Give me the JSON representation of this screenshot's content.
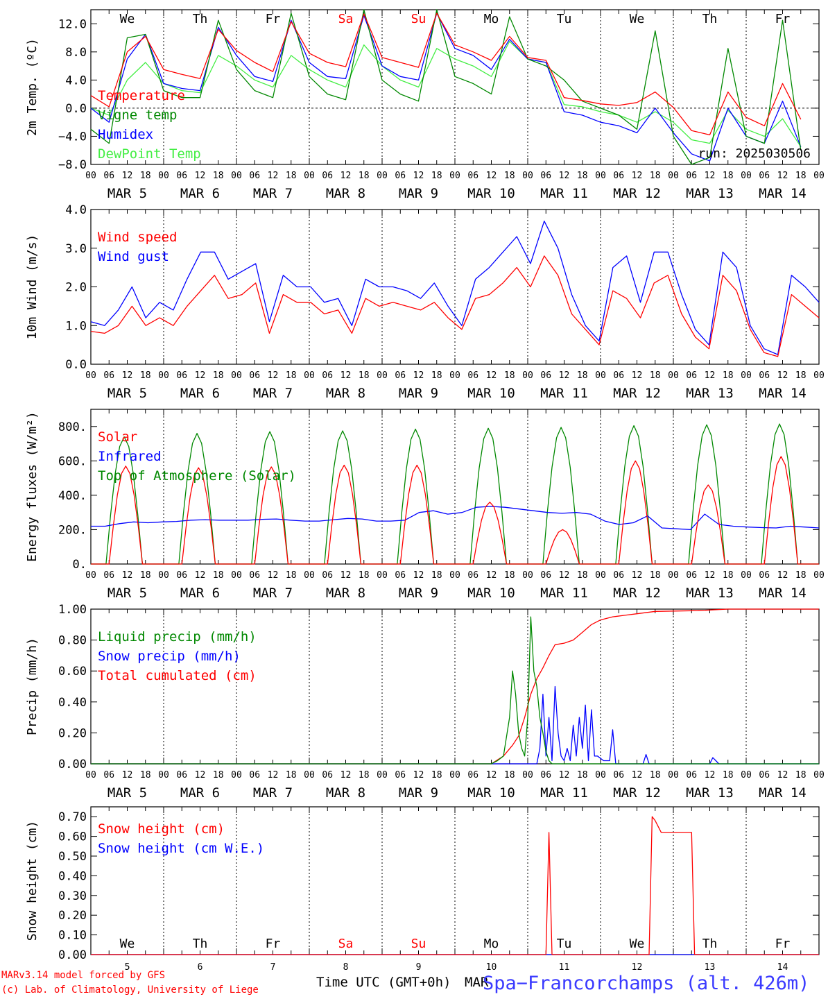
{
  "chart_data": [
    {
      "type": "line",
      "ylabel": "2m Temp. (ºC)",
      "ylim": [
        -8,
        14
      ],
      "yticks": [
        "−8.0",
        "−4.0",
        "0.0",
        "4.0",
        "8.0",
        "12.0"
      ],
      "ytick_values": [
        -8,
        -4,
        0,
        4,
        8,
        12
      ],
      "zero_line": true,
      "x_hours": [
        0,
        6,
        12,
        18,
        24,
        30,
        36,
        42,
        48,
        54,
        60,
        66,
        72,
        78,
        84,
        90,
        96,
        102,
        108,
        114,
        120,
        126,
        132,
        138,
        144,
        150,
        156,
        162,
        168,
        174,
        180,
        186,
        192,
        198,
        204,
        210,
        216,
        222,
        228,
        234
      ],
      "day_labels_top": [
        {
          "label": "We",
          "color": "#000000"
        },
        {
          "label": "Th",
          "color": "#000000"
        },
        {
          "label": "Fr",
          "color": "#000000"
        },
        {
          "label": "Sa",
          "color": "#ff0000"
        },
        {
          "label": "Su",
          "color": "#ff0000"
        },
        {
          "label": "Mo",
          "color": "#000000"
        },
        {
          "label": "Tu",
          "color": "#000000"
        },
        {
          "label": "We",
          "color": "#000000"
        },
        {
          "label": "Th",
          "color": "#000000"
        },
        {
          "label": "Fr",
          "color": "#000000"
        }
      ],
      "annotation": "run: 2025030506",
      "series": [
        {
          "name": "Temperature",
          "color": "#ff0000",
          "values": [
            1.8,
            0.2,
            8,
            10.2,
            5.5,
            4.8,
            4.2,
            11.2,
            8.2,
            6.5,
            5.2,
            12.3,
            7.8,
            6.5,
            5.9,
            13.4,
            7.2,
            6.5,
            5.8,
            13.5,
            9.0,
            8.0,
            6.8,
            10.2,
            7.2,
            6.8,
            1.5,
            1.1,
            0.6,
            0.4,
            0.8,
            2.3,
            0.1,
            -3.2,
            -3.8,
            2.3,
            -1.3,
            -2.5,
            3.5,
            -1.6
          ]
        },
        {
          "name": "Vigne temp",
          "color": "#008800",
          "values": [
            -3,
            -5,
            10,
            10.5,
            2.5,
            1.5,
            1.5,
            12.5,
            5.5,
            2.5,
            1.5,
            13.5,
            4.5,
            2.0,
            1.2,
            14,
            4.0,
            2.0,
            1.0,
            14,
            4.5,
            3.5,
            2,
            13,
            7,
            6,
            4,
            1,
            0,
            -1,
            -3,
            11,
            -4,
            -8,
            -7,
            8.5,
            -4,
            -5,
            12.5,
            -6
          ]
        },
        {
          "name": "Humidex",
          "color": "#0000ff",
          "values": [
            0,
            -2,
            7,
            10.5,
            3.5,
            2.8,
            2.5,
            11.5,
            7.5,
            4.5,
            3.8,
            12.5,
            6.5,
            4.5,
            4.2,
            13.2,
            6.0,
            4.5,
            4.0,
            13.5,
            8.5,
            7.5,
            5.5,
            9.8,
            7.0,
            6.5,
            -0.5,
            -1.0,
            -2.0,
            -2.5,
            -3.5,
            0,
            -3.5,
            -6.5,
            -7.5,
            0,
            -4,
            -5,
            1,
            -5.5
          ]
        },
        {
          "name": "DewPoint Temp",
          "color": "#44ee44",
          "values": [
            0,
            -1,
            4,
            6.5,
            3.5,
            2.5,
            2.2,
            7.5,
            6,
            4,
            3,
            7.5,
            5.5,
            4,
            3,
            9,
            6,
            4,
            3,
            8.5,
            7,
            6,
            4.5,
            9.5,
            7,
            6.5,
            0.5,
            0.2,
            -0.5,
            -1,
            -2,
            -0.5,
            -2,
            -4.5,
            -5,
            -0.3,
            -3,
            -4,
            -1.5,
            -5.5
          ]
        }
      ]
    },
    {
      "type": "line",
      "ylabel": "10m Wind (m/s)",
      "ylim": [
        0,
        4
      ],
      "yticks": [
        "0.0",
        "1.0",
        "2.0",
        "3.0",
        "4.0"
      ],
      "ytick_values": [
        0,
        1,
        2,
        3,
        4
      ],
      "series": [
        {
          "name": "Wind speed",
          "color": "#ff0000",
          "values": [
            0.85,
            0.8,
            1.0,
            1.5,
            1.0,
            1.2,
            1.0,
            1.5,
            1.9,
            2.3,
            1.7,
            1.8,
            2.1,
            0.8,
            1.8,
            1.6,
            1.6,
            1.3,
            1.4,
            0.8,
            1.7,
            1.5,
            1.6,
            1.5,
            1.4,
            1.6,
            1.2,
            0.9,
            1.7,
            1.8,
            2.1,
            2.5,
            2.0,
            2.8,
            2.3,
            1.3,
            0.9,
            0.5,
            1.9,
            1.7,
            1.2,
            2.1,
            2.3,
            1.3,
            0.7,
            0.4,
            2.3,
            1.9,
            0.9,
            0.3,
            0.2,
            1.8,
            1.5,
            1.2
          ]
        },
        {
          "name": "Wind gust",
          "color": "#0000ff",
          "values": [
            1.1,
            1.0,
            1.4,
            2.0,
            1.2,
            1.6,
            1.4,
            2.2,
            2.9,
            2.9,
            2.2,
            2.4,
            2.6,
            1.1,
            2.3,
            2.0,
            2.0,
            1.6,
            1.7,
            1.0,
            2.2,
            2.0,
            2.0,
            1.9,
            1.7,
            2.1,
            1.5,
            1.0,
            2.2,
            2.5,
            2.9,
            3.3,
            2.6,
            3.7,
            3.0,
            1.8,
            1.0,
            0.6,
            2.5,
            2.8,
            1.6,
            2.9,
            2.9,
            1.8,
            0.9,
            0.5,
            2.9,
            2.5,
            1.0,
            0.4,
            0.25,
            2.3,
            2.0,
            1.6
          ]
        }
      ]
    },
    {
      "type": "line",
      "ylabel": "Energy fluxes (W/m²)",
      "ylim": [
        0,
        900
      ],
      "yticks": [
        "0.",
        "200.",
        "400.",
        "600.",
        "800."
      ],
      "ytick_values": [
        0,
        200,
        400,
        600,
        800
      ],
      "series": [
        {
          "name": "Solar",
          "color": "#ff0000",
          "peaks": [
            570,
            560,
            565,
            575,
            575,
            360,
            200,
            600,
            460,
            625
          ]
        },
        {
          "name": "Infrared",
          "color": "#0000ff",
          "values": [
            220,
            220,
            235,
            245,
            240,
            245,
            248,
            255,
            258,
            255,
            255,
            255,
            260,
            262,
            255,
            250,
            250,
            258,
            265,
            262,
            250,
            250,
            255,
            300,
            310,
            290,
            300,
            330,
            335,
            330,
            320,
            310,
            300,
            295,
            300,
            290,
            250,
            230,
            240,
            280,
            210,
            205,
            200,
            290,
            230,
            220,
            215,
            212,
            210,
            220,
            215,
            210
          ]
        },
        {
          "name": "Top of Atmosphere (Solar)",
          "color": "#008800",
          "peaks": [
            740,
            760,
            770,
            775,
            785,
            790,
            795,
            805,
            810,
            815
          ]
        }
      ]
    },
    {
      "type": "line",
      "ylabel": "Precip (mm/h)",
      "ylim": [
        0,
        1.0
      ],
      "yticks": [
        "0.00",
        "0.20",
        "0.40",
        "0.60",
        "0.80",
        "1.00"
      ],
      "ytick_values": [
        0,
        0.2,
        0.4,
        0.6,
        0.8,
        1.0
      ],
      "series": [
        {
          "name": "Liquid precip (mm/h)",
          "color": "#008800",
          "points": [
            [
              0,
              0
            ],
            [
              132,
              0
            ],
            [
              134,
              0.02
            ],
            [
              136,
              0.05
            ],
            [
              138,
              0.3
            ],
            [
              139,
              0.6
            ],
            [
              140,
              0.45
            ],
            [
              141,
              0.2
            ],
            [
              142,
              0.1
            ],
            [
              143,
              0.05
            ],
            [
              144,
              0.3
            ],
            [
              145,
              0.95
            ],
            [
              146,
              0.6
            ],
            [
              147,
              0.5
            ],
            [
              148,
              0.3
            ],
            [
              149,
              0.2
            ],
            [
              150,
              0.08
            ],
            [
              151,
              0.02
            ],
            [
              152,
              0
            ],
            [
              240,
              0
            ]
          ]
        },
        {
          "name": "Snow precip (mm/h)",
          "color": "#0000ff",
          "points": [
            [
              0,
              0
            ],
            [
              147,
              0
            ],
            [
              148,
              0.1
            ],
            [
              149,
              0.45
            ],
            [
              150,
              0.05
            ],
            [
              151,
              0.3
            ],
            [
              152,
              0.02
            ],
            [
              153,
              0.5
            ],
            [
              154,
              0.2
            ],
            [
              155,
              0.05
            ],
            [
              156,
              0.02
            ],
            [
              157,
              0.1
            ],
            [
              158,
              0.02
            ],
            [
              159,
              0.25
            ],
            [
              160,
              0.05
            ],
            [
              161,
              0.3
            ],
            [
              162,
              0.1
            ],
            [
              163,
              0.38
            ],
            [
              164,
              0.02
            ],
            [
              165,
              0.35
            ],
            [
              166,
              0.05
            ],
            [
              167,
              0.05
            ],
            [
              169,
              0.02
            ],
            [
              171,
              0.02
            ],
            [
              172,
              0.22
            ],
            [
              173,
              0
            ],
            [
              182,
              0
            ],
            [
              183,
              0.06
            ],
            [
              184,
              0
            ],
            [
              204,
              0
            ],
            [
              205,
              0.04
            ],
            [
              206,
              0.02
            ],
            [
              207,
              0
            ],
            [
              240,
              0
            ]
          ]
        },
        {
          "name": "Total cumulated (cm)",
          "color": "#ff0000",
          "points": [
            [
              0,
              0
            ],
            [
              132,
              0
            ],
            [
              136,
              0.05
            ],
            [
              139,
              0.12
            ],
            [
              141,
              0.18
            ],
            [
              143,
              0.3
            ],
            [
              145,
              0.45
            ],
            [
              147,
              0.55
            ],
            [
              149,
              0.62
            ],
            [
              151,
              0.7
            ],
            [
              153,
              0.77
            ],
            [
              156,
              0.78
            ],
            [
              159,
              0.8
            ],
            [
              162,
              0.85
            ],
            [
              165,
              0.9
            ],
            [
              168,
              0.93
            ],
            [
              172,
              0.95
            ],
            [
              176,
              0.96
            ],
            [
              180,
              0.97
            ],
            [
              186,
              0.985
            ],
            [
              200,
              0.99
            ],
            [
              210,
              1.0
            ],
            [
              240,
              1.0
            ]
          ]
        }
      ]
    },
    {
      "type": "line",
      "ylabel": "Snow height (cm)",
      "ylim": [
        0,
        0.75
      ],
      "yticks": [
        "0.00",
        "0.10",
        "0.20",
        "0.30",
        "0.40",
        "0.50",
        "0.60",
        "0.70"
      ],
      "ytick_values": [
        0,
        0.1,
        0.2,
        0.3,
        0.4,
        0.5,
        0.6,
        0.7
      ],
      "day_labels_bottom": [
        {
          "label": "We",
          "color": "#000000"
        },
        {
          "label": "Th",
          "color": "#000000"
        },
        {
          "label": "Fr",
          "color": "#000000"
        },
        {
          "label": "Sa",
          "color": "#ff0000"
        },
        {
          "label": "Su",
          "color": "#ff0000"
        },
        {
          "label": "Mo",
          "color": "#000000"
        },
        {
          "label": "Tu",
          "color": "#000000"
        },
        {
          "label": "We",
          "color": "#000000"
        },
        {
          "label": "Th",
          "color": "#000000"
        },
        {
          "label": "Fr",
          "color": "#000000"
        }
      ],
      "day_numbers": [
        "5",
        "6",
        "7",
        "8",
        "9",
        "10",
        "11",
        "12",
        "13",
        "14"
      ],
      "series": [
        {
          "name": "Snow height (cm)",
          "color": "#ff0000",
          "points": [
            [
              0,
              0
            ],
            [
              150,
              0
            ],
            [
              151,
              0.62
            ],
            [
              152,
              0
            ],
            [
              184,
              0
            ],
            [
              185,
              0.7
            ],
            [
              186,
              0.68
            ],
            [
              188,
              0.62
            ],
            [
              198,
              0.62
            ],
            [
              199,
              0
            ],
            [
              240,
              0
            ]
          ]
        },
        {
          "name": "Snow height (cm W.E.)",
          "color": "#0000ff",
          "points": [
            [
              0,
              0
            ],
            [
              240,
              0
            ]
          ]
        }
      ]
    }
  ],
  "x_axis": {
    "hour_ticks": [
      "00",
      "06",
      "12",
      "18"
    ],
    "date_labels": [
      "MAR  5",
      "MAR  6",
      "MAR  7",
      "MAR  8",
      "MAR  9",
      "MAR 10",
      "MAR 11",
      "MAR 12",
      "MAR 13",
      "MAR 14"
    ],
    "title": "Time UTC (GMT+0h)",
    "title_suffix": "MAR"
  },
  "footer": {
    "credit_line1": "MARv3.14 model forced by GFS",
    "credit_line2": "(c) Lab. of Climatology, University of Liege",
    "station": "Spa−Francorchamps (alt. 426m)"
  }
}
